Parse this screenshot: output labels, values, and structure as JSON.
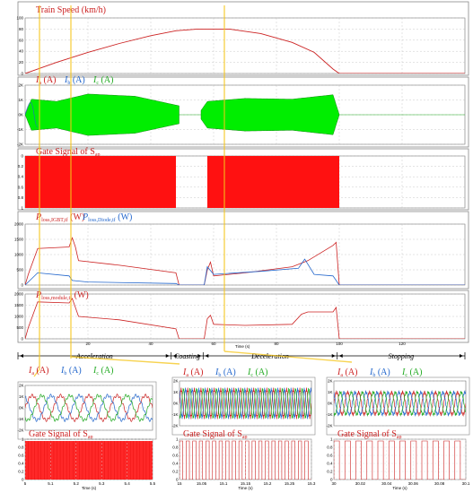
{
  "colors": {
    "red": "#cc2222",
    "blue": "#2266cc",
    "green": "#22aa22",
    "bright_green": "#00ee00",
    "gate_red": "#ff1111",
    "highlight": "#f5c518"
  },
  "panels": {
    "speed": {
      "title": "Train Speed (km/h)"
    },
    "currents": {
      "a": "Ia (A)",
      "b": "Ib (A)",
      "c": "Ic (A)"
    },
    "gate": {
      "title": "Gate Signal of Sap"
    },
    "loss": {
      "igbt": "Ploss,IGBT,tf (W)",
      "diode": "Ploss,Diode,tf (W)"
    },
    "module": {
      "title": "Ploss,module,tf (W)"
    }
  },
  "main_axis": {
    "time_label": "Time (s)"
  },
  "phases": [
    {
      "name": "Acceleration",
      "start": 0,
      "end": 48
    },
    {
      "name": "Coasting",
      "start": 48,
      "end": 58
    },
    {
      "name": "Deceleration",
      "start": 58,
      "end": 100
    },
    {
      "name": "Stopping",
      "start": 100,
      "end": 140
    }
  ],
  "zoom_panels": [
    {
      "a": "Ia (A)",
      "b": "Ib (A)",
      "c": "Ic (A)",
      "gate_title": "Gate Signal of Sap",
      "time_label": "Time (s)"
    },
    {
      "a": "Ia (A)",
      "b": "Ib (A)",
      "c": "Ic (A)",
      "gate_title": "Gate Signal of Sap",
      "time_label": "Time (s)"
    },
    {
      "a": "Ia (A)",
      "b": "Ib (A)",
      "c": "Ic (A)",
      "gate_title": "Gate Signal of Sap",
      "time_label": "Time (s)"
    }
  ],
  "chart_data": [
    {
      "type": "line",
      "title": "Train Speed (km/h)",
      "xlim": [
        0,
        140
      ],
      "ylim": [
        0,
        100
      ],
      "yticks": [
        "0",
        "20",
        "40",
        "60",
        "80",
        "100"
      ],
      "series": [
        {
          "points": [
            [
              0,
              0
            ],
            [
              10,
              20
            ],
            [
              20,
              38
            ],
            [
              30,
              54
            ],
            [
              40,
              68
            ],
            [
              48,
              77
            ],
            [
              55,
              80
            ],
            [
              65,
              80
            ],
            [
              75,
              72
            ],
            [
              85,
              56
            ],
            [
              92,
              38
            ],
            [
              98,
              8
            ],
            [
              100,
              0
            ],
            [
              140,
              0
            ]
          ]
        }
      ]
    },
    {
      "type": "line",
      "title": "Ia (A) Ib (A) Ic (A)",
      "xlim": [
        0,
        140
      ],
      "ylim": [
        -2000,
        2000
      ],
      "yticks": [
        "2K",
        "1K",
        "0K",
        "-1K",
        "-2K"
      ],
      "envelope": [
        [
          0,
          0
        ],
        [
          2,
          1050
        ],
        [
          10,
          900
        ],
        [
          20,
          1400
        ],
        [
          35,
          1250
        ],
        [
          48,
          650
        ],
        [
          56,
          300
        ],
        [
          58,
          900
        ],
        [
          70,
          1100
        ],
        [
          85,
          1050
        ],
        [
          98,
          1350
        ],
        [
          100,
          0
        ]
      ],
      "gaps": [
        [
          49,
          56
        ]
      ]
    },
    {
      "type": "area",
      "title": "Gate Signal of Sap",
      "xlim": [
        0,
        140
      ],
      "ylim": [
        0,
        1
      ],
      "yticks": [
        "1",
        "0.8",
        "0.6",
        "0.4",
        "0.2",
        "0"
      ],
      "on_intervals": [
        [
          0,
          48
        ],
        [
          58,
          100
        ]
      ]
    },
    {
      "type": "line",
      "title": "Ploss,IGBT,tf (W) Ploss,Diode,tf (W)",
      "xlim": [
        0,
        140
      ],
      "ylim": [
        0,
        2000
      ],
      "yticks": [
        "2000",
        "1500",
        "1000",
        "500",
        "0"
      ],
      "series": [
        {
          "name": "Ploss,IGBT,tf (W)",
          "points": [
            [
              0,
              0
            ],
            [
              1,
              350
            ],
            [
              4,
              1200
            ],
            [
              14,
              1250
            ],
            [
              15,
              1550
            ],
            [
              16,
              1250
            ],
            [
              17,
              800
            ],
            [
              30,
              650
            ],
            [
              48,
              400
            ],
            [
              49,
              0
            ],
            [
              57,
              0
            ],
            [
              58,
              500
            ],
            [
              59,
              750
            ],
            [
              60,
              300
            ],
            [
              70,
              400
            ],
            [
              85,
              600
            ],
            [
              90,
              800
            ],
            [
              98,
              1300
            ],
            [
              99,
              1400
            ],
            [
              100,
              0
            ],
            [
              140,
              0
            ]
          ]
        },
        {
          "name": "Ploss,Diode,tf (W)",
          "points": [
            [
              0,
              0
            ],
            [
              1,
              100
            ],
            [
              4,
              400
            ],
            [
              14,
              300
            ],
            [
              15,
              150
            ],
            [
              20,
              100
            ],
            [
              48,
              50
            ],
            [
              49,
              0
            ],
            [
              57,
              0
            ],
            [
              58,
              600
            ],
            [
              60,
              350
            ],
            [
              75,
              450
            ],
            [
              87,
              550
            ],
            [
              89,
              850
            ],
            [
              92,
              350
            ],
            [
              98,
              300
            ],
            [
              100,
              0
            ],
            [
              140,
              0
            ]
          ]
        }
      ]
    },
    {
      "type": "line",
      "title": "Ploss,module,tf (W)",
      "xlim": [
        0,
        140
      ],
      "ylim": [
        0,
        2000
      ],
      "yticks": [
        "2000",
        "1500",
        "1000",
        "500",
        "0"
      ],
      "series": [
        {
          "name": "Ploss,module,tf (W)",
          "points": [
            [
              0,
              0
            ],
            [
              1,
              500
            ],
            [
              4,
              1650
            ],
            [
              14,
              1600
            ],
            [
              15,
              1800
            ],
            [
              16,
              1400
            ],
            [
              17,
              1000
            ],
            [
              30,
              850
            ],
            [
              48,
              450
            ],
            [
              49,
              0
            ],
            [
              57,
              0
            ],
            [
              58,
              900
            ],
            [
              59,
              1050
            ],
            [
              60,
              650
            ],
            [
              70,
              600
            ],
            [
              85,
              650
            ],
            [
              88,
              1100
            ],
            [
              90,
              1200
            ],
            [
              98,
              1200
            ],
            [
              99,
              1400
            ],
            [
              100,
              0
            ],
            [
              140,
              0
            ]
          ]
        }
      ]
    },
    {
      "type": "line",
      "title": "Ia (A) Ib (A) Ic (A)",
      "xlim": [
        5,
        5.5
      ],
      "ylim": [
        -2000,
        2000
      ],
      "xticks": [
        "5",
        "5.1",
        "5.2",
        "5.3",
        "5.4",
        "5.5"
      ],
      "yticks": [
        "2K",
        "1K",
        "0K",
        "-1K",
        "-2K"
      ],
      "amplitude": 1100,
      "cycles": 4.5
    },
    {
      "type": "area",
      "title": "Gate Signal of Sap",
      "xlim": [
        5,
        5.5
      ],
      "ylim": [
        0,
        1
      ],
      "xticks": [
        "5",
        "5.1",
        "5.2",
        "5.3",
        "5.4",
        "5.5"
      ],
      "yticks": [
        "1",
        "0.8",
        "0.6",
        "0.4",
        "0.2",
        "0"
      ]
    },
    {
      "type": "line",
      "title": "Ia (A) Ib (A) Ic (A)",
      "xlim": [
        15,
        15.3
      ],
      "ylim": [
        -2000,
        2000
      ],
      "xticks": [
        "15",
        "15.05",
        "15.1",
        "15.15",
        "15.2",
        "15.25",
        "15.3"
      ],
      "yticks": [
        "2K",
        "1K",
        "0K",
        "-1K",
        "-2K"
      ],
      "amplitude": 1250,
      "cycles": 20
    },
    {
      "type": "area",
      "title": "Gate Signal of Sap",
      "xlim": [
        15,
        15.3
      ],
      "ylim": [
        0,
        1
      ],
      "xticks": [
        "15",
        "15.05",
        "15.1",
        "15.15",
        "15.2",
        "15.25",
        "15.3"
      ],
      "yticks": [
        "1",
        "0.8",
        "0.6",
        "0.4",
        "0.2",
        "0"
      ],
      "pulses": 20
    },
    {
      "type": "line",
      "title": "Ia (A) Ib (A) Ic (A)",
      "xlim": [
        30,
        30.1
      ],
      "ylim": [
        -2000,
        2000
      ],
      "xticks": [
        "30",
        "30.02",
        "30.04",
        "30.06",
        "30.08",
        "30.1"
      ],
      "yticks": [
        "2K",
        "1K",
        "0K",
        "-1K",
        "-2K"
      ],
      "amplitude": 1000,
      "cycles": 12
    },
    {
      "type": "area",
      "title": "Gate Signal of Sap",
      "xlim": [
        30,
        30.1
      ],
      "ylim": [
        0,
        1
      ],
      "xticks": [
        "30",
        "30.02",
        "30.04",
        "30.06",
        "30.08",
        "30.1"
      ],
      "yticks": [
        "1",
        "0.8",
        "0.6",
        "0.4",
        "0.2",
        "0"
      ],
      "pulses": 12
    }
  ]
}
